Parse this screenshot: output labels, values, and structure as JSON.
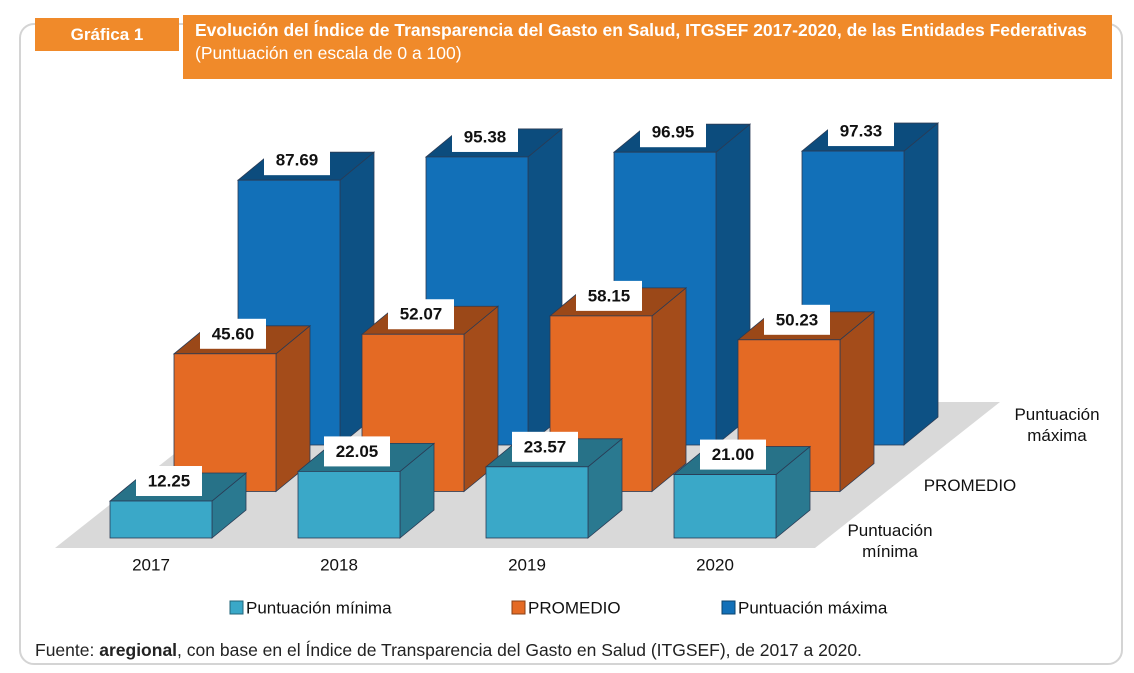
{
  "chart_data": {
    "type": "bar3d",
    "label": "Gráfica 1",
    "title": "Evolución del Índice de Transparencia del Gasto en Salud, ITGSEF 2017-2020, de las Entidades Federativas",
    "subtitle": "(Puntuación en escala de 0 a 100)",
    "categories": [
      "2017",
      "2018",
      "2019",
      "2020"
    ],
    "series": [
      {
        "name": "Puntuación mínima",
        "color": "#3aa8c8",
        "values": [
          12.25,
          22.05,
          23.57,
          21.0
        ],
        "value_labels": [
          "12.25",
          "22.05",
          "23.57",
          "21.00"
        ]
      },
      {
        "name": "PROMEDIO",
        "color": "#e46a24",
        "values": [
          45.6,
          52.07,
          58.15,
          50.23
        ],
        "value_labels": [
          "45.60",
          "52.07",
          "58.15",
          "50.23"
        ]
      },
      {
        "name": "Puntuación máxima",
        "color": "#1270b8",
        "values": [
          87.69,
          95.38,
          96.95,
          97.33
        ],
        "value_labels": [
          "87.69",
          "95.38",
          "96.95",
          "97.33"
        ]
      }
    ],
    "ylim": [
      0,
      100
    ],
    "source": {
      "prefix": "Fuente:",
      "author": "aregional",
      "text": ", con base en el Índice de Transparencia del Gasto en Salud (ITGSEF), de 2017 a 2020."
    }
  }
}
